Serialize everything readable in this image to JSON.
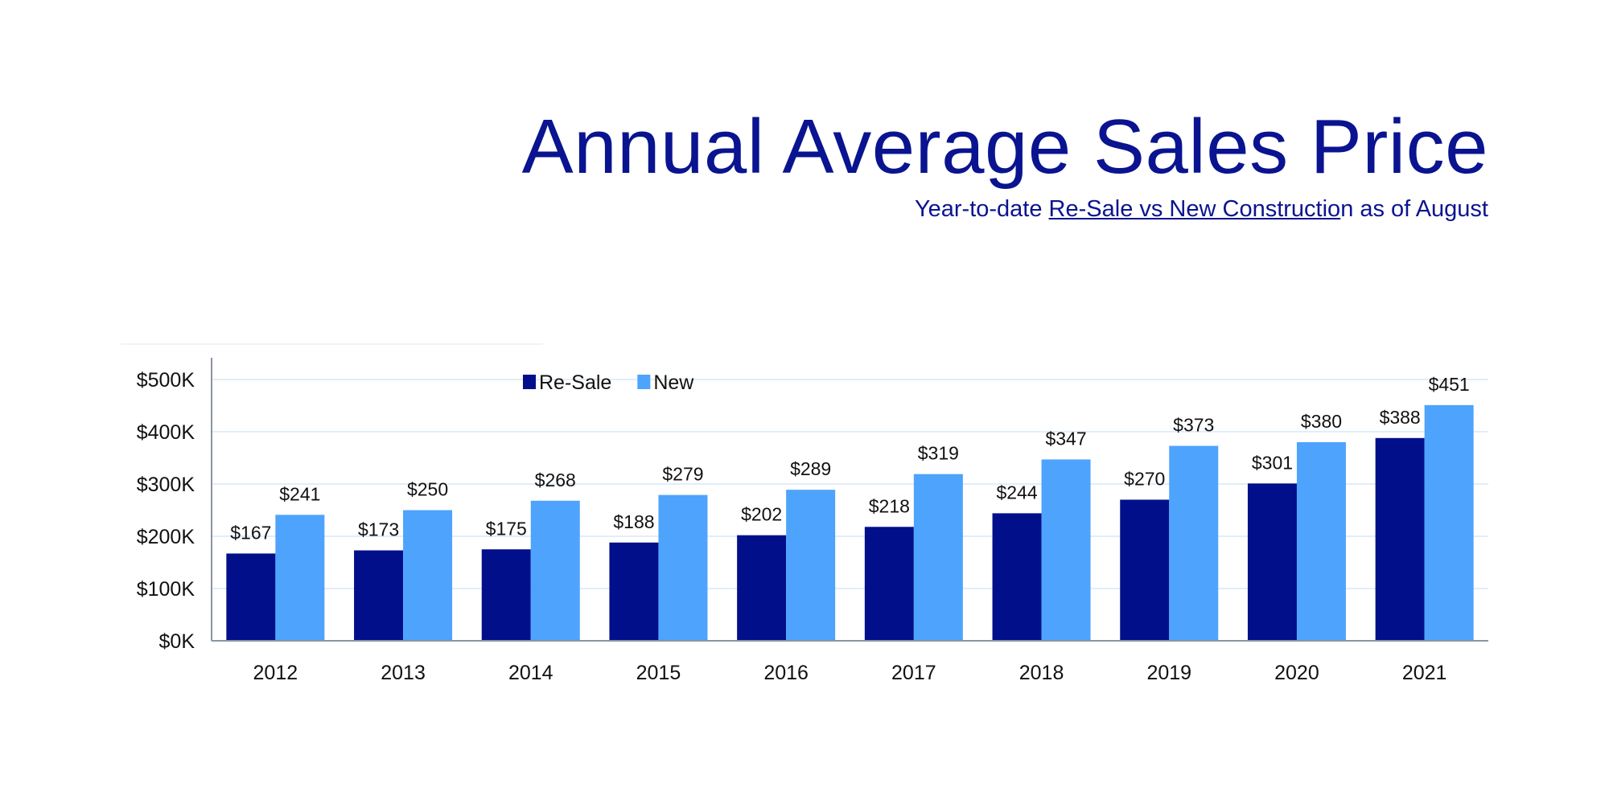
{
  "chart_data": {
    "type": "bar",
    "title": "Annual Average Sales Price",
    "subtitle": {
      "prefix": "Year-to-date ",
      "underlined": "Re-Sale vs New Constructio",
      "suffix": "n as of August"
    },
    "xlabel": "",
    "ylabel": "",
    "categories": [
      "2012",
      "2013",
      "2014",
      "2015",
      "2016",
      "2017",
      "2018",
      "2019",
      "2020",
      "2021"
    ],
    "series": [
      {
        "name": "Re-Sale",
        "color": "#020f8a",
        "values": [
          167,
          173,
          175,
          188,
          202,
          218,
          244,
          270,
          301,
          388
        ],
        "labels": [
          "$167",
          "$173",
          "$175",
          "$188",
          "$202",
          "$218",
          "$244",
          "$270",
          "$301",
          "$388"
        ]
      },
      {
        "name": "New",
        "color": "#4ea3fc",
        "values": [
          241,
          250,
          268,
          279,
          289,
          319,
          347,
          373,
          380,
          451
        ],
        "labels": [
          "$241",
          "$250",
          "$268",
          "$279",
          "$289",
          "$319",
          "$347",
          "$373",
          "$380",
          "$451"
        ]
      }
    ],
    "ylim": [
      0,
      500
    ],
    "yticks": [
      0,
      100,
      200,
      300,
      400,
      500
    ],
    "ytick_labels": [
      "$0K",
      "$100K",
      "$200K",
      "$300K",
      "$400K",
      "$500K"
    ],
    "grid": true,
    "legend_position": "top-left"
  }
}
